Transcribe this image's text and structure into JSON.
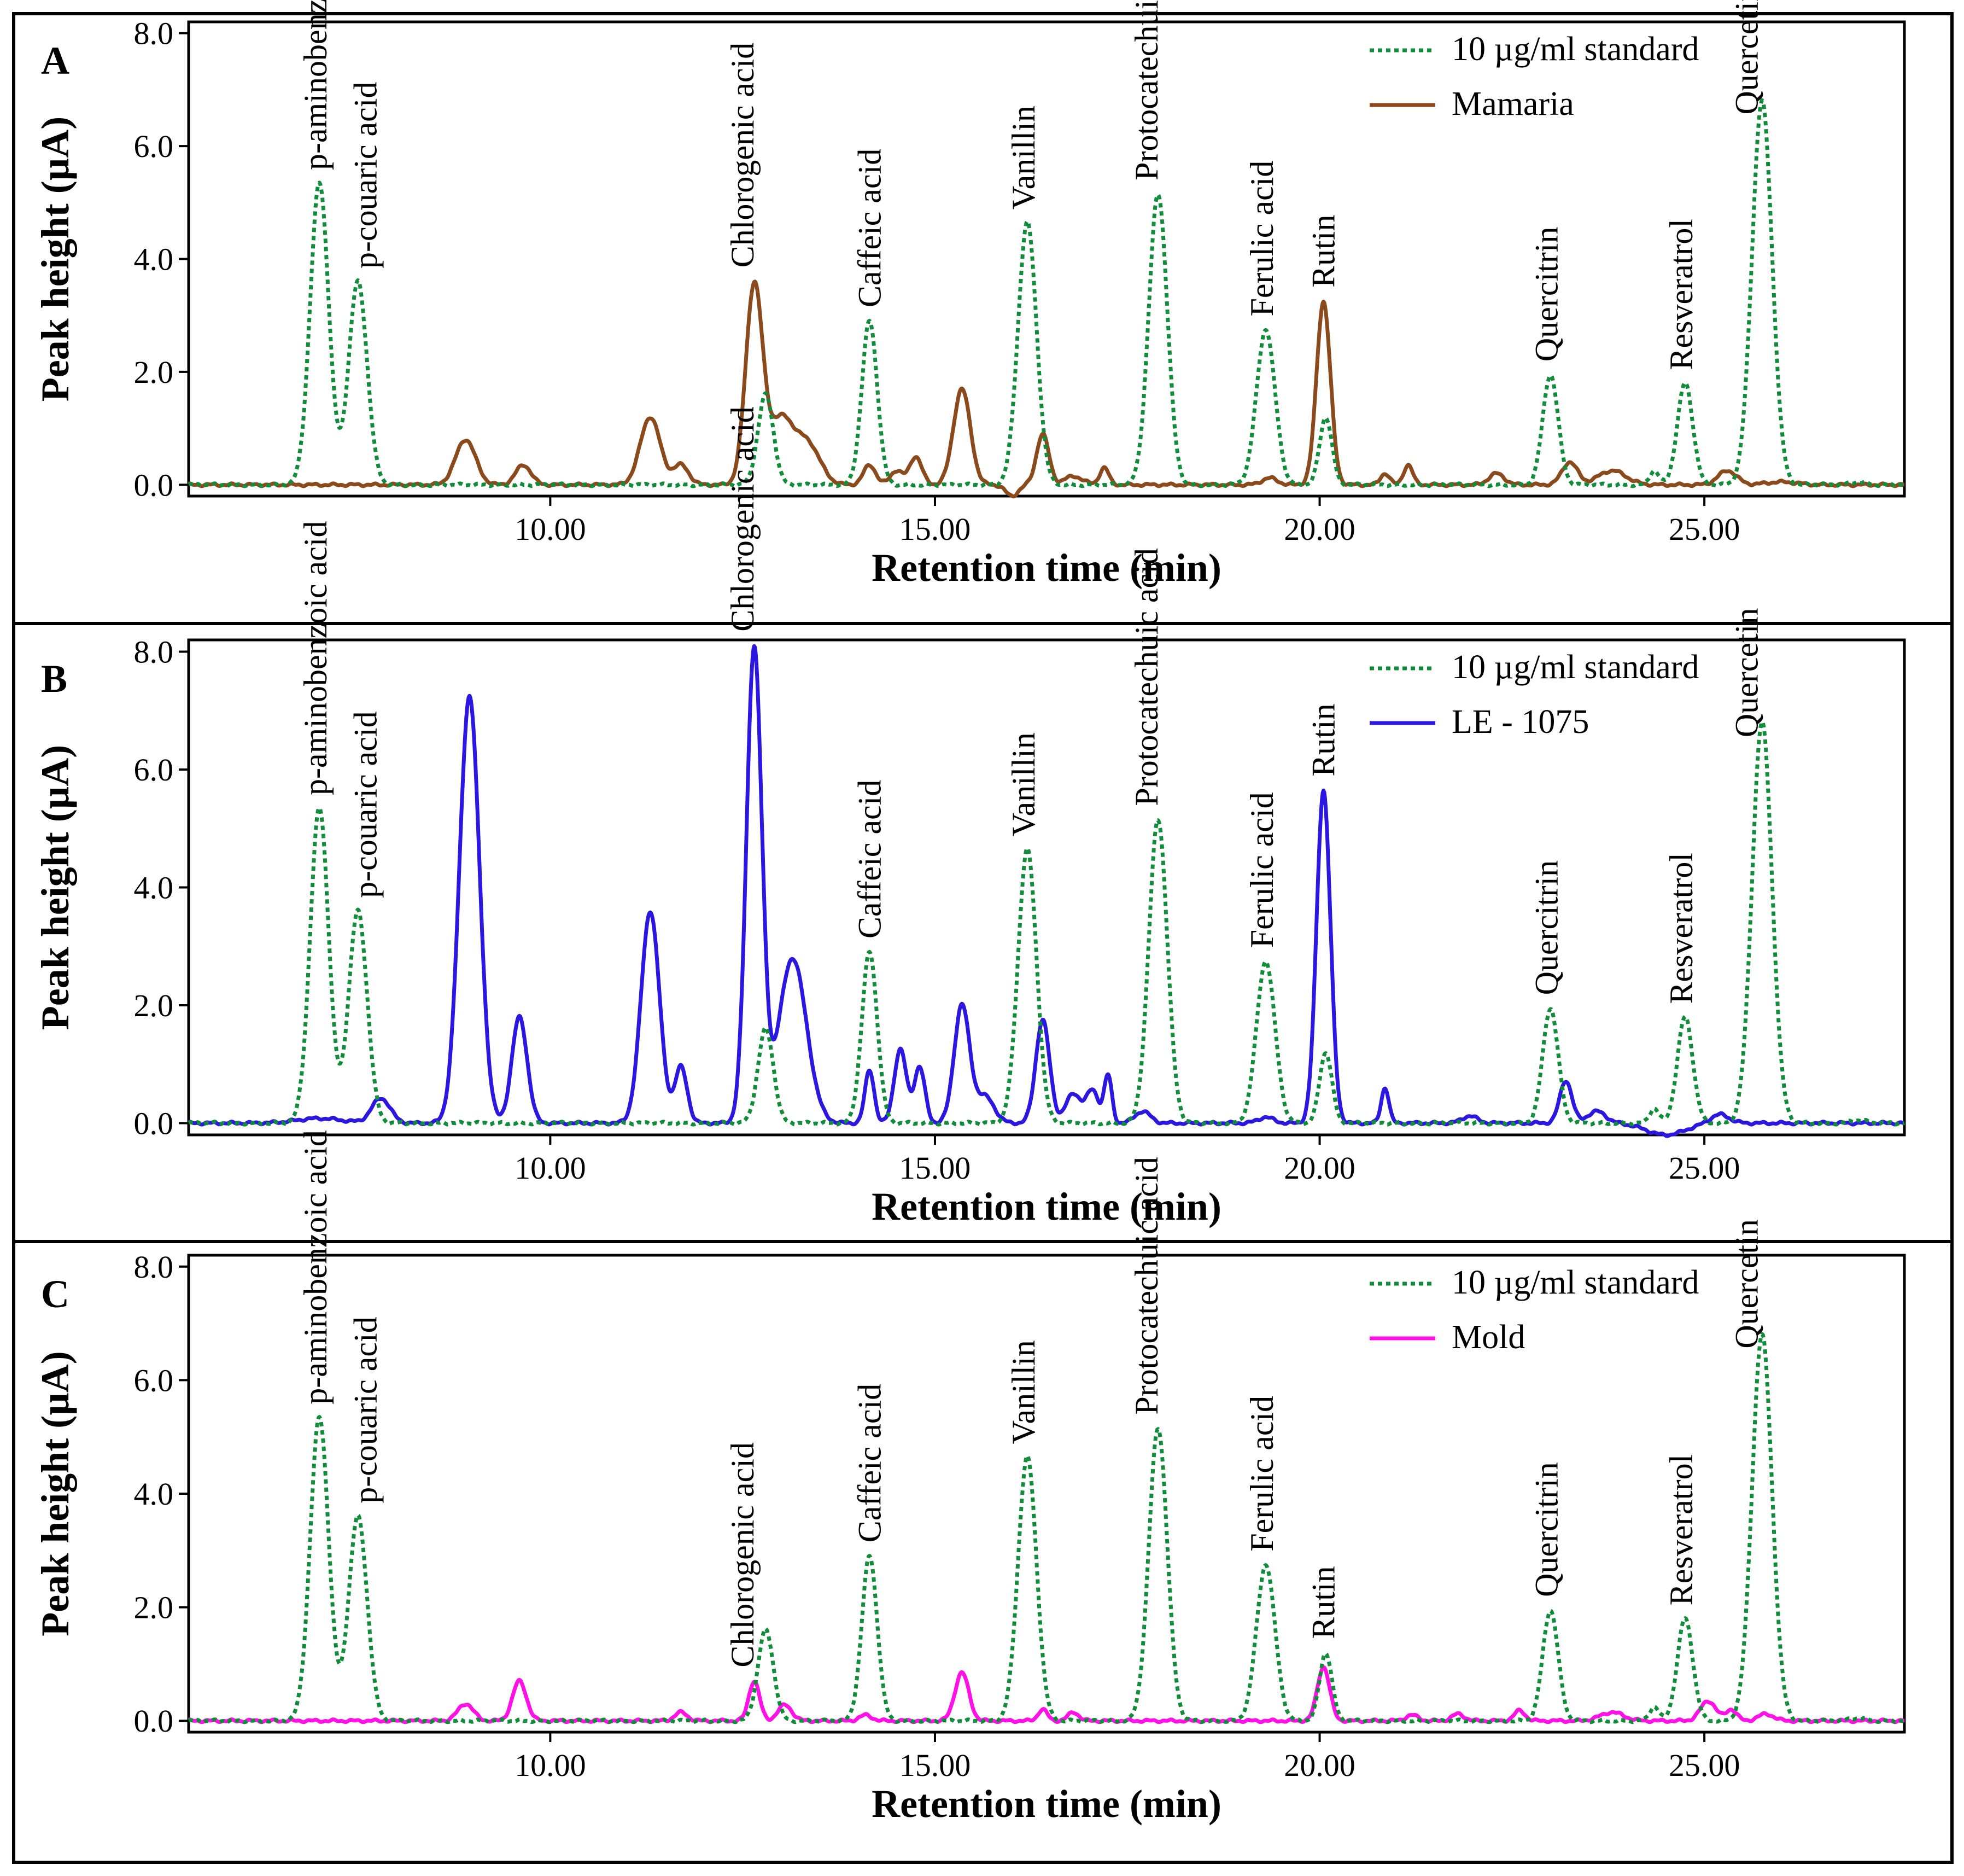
{
  "colors": {
    "standard": "#118c3a",
    "mamaria": "#8b4a1c",
    "le1075": "#2b17e0",
    "mold": "#ff10e6"
  },
  "chart_data": [
    {
      "type": "line",
      "panel_letter": "A",
      "xlabel": "Retention time (min)",
      "ylabel": "Peak height (µA)",
      "xlim": [
        5.3,
        27.6
      ],
      "ylim": [
        -0.2,
        8.2
      ],
      "x_ticks": [
        "10.00",
        "15.00",
        "20.00",
        "25.00"
      ],
      "y_ticks": [
        "0.0",
        "2.0",
        "4.0",
        "6.0",
        "8.0"
      ],
      "legend": [
        "10 µg/ml standard",
        "Mamaria"
      ],
      "series": [
        {
          "name": "10 µg/ml standard",
          "style": "dotted",
          "color_key": "standard",
          "peaks": [
            [
              7.0,
              5.35,
              0.12
            ],
            [
              7.5,
              3.6,
              0.12
            ],
            [
              12.8,
              1.6,
              0.1
            ],
            [
              14.15,
              2.9,
              0.1
            ],
            [
              16.2,
              4.65,
              0.12
            ],
            [
              17.9,
              5.15,
              0.12
            ],
            [
              19.3,
              2.75,
              0.12
            ],
            [
              20.08,
              1.2,
              0.08
            ],
            [
              23.0,
              1.95,
              0.1
            ],
            [
              24.35,
              0.25,
              0.06
            ],
            [
              24.75,
              1.8,
              0.1
            ],
            [
              25.75,
              6.8,
              0.13
            ],
            [
              27.0,
              0.05,
              0.1
            ]
          ]
        },
        {
          "name": "Mamaria",
          "style": "solid",
          "color_key": "mamaria",
          "peaks": [
            [
              8.9,
              0.8,
              0.13
            ],
            [
              9.65,
              0.35,
              0.1
            ],
            [
              11.3,
              1.2,
              0.13
            ],
            [
              11.7,
              0.35,
              0.1
            ],
            [
              12.65,
              3.5,
              0.11
            ],
            [
              13.0,
              1.15,
              0.16
            ],
            [
              13.35,
              0.7,
              0.16
            ],
            [
              14.15,
              0.35,
              0.08
            ],
            [
              14.5,
              0.25,
              0.08
            ],
            [
              14.75,
              0.5,
              0.08
            ],
            [
              15.35,
              1.7,
              0.11
            ],
            [
              16.0,
              -0.2,
              0.08
            ],
            [
              16.4,
              0.9,
              0.08
            ],
            [
              16.8,
              0.15,
              0.12
            ],
            [
              17.2,
              0.3,
              0.06
            ],
            [
              19.35,
              0.12,
              0.1
            ],
            [
              20.05,
              3.25,
              0.09
            ],
            [
              20.85,
              0.2,
              0.06
            ],
            [
              21.15,
              0.35,
              0.06
            ],
            [
              22.3,
              0.2,
              0.1
            ],
            [
              23.25,
              0.4,
              0.1
            ],
            [
              23.8,
              0.25,
              0.18
            ],
            [
              25.3,
              0.25,
              0.12
            ],
            [
              26.0,
              0.05,
              0.2
            ]
          ]
        }
      ]
    },
    {
      "type": "line",
      "panel_letter": "B",
      "xlabel": "Retention time (min)",
      "ylabel": "Peak height (µA)",
      "xlim": [
        5.3,
        27.6
      ],
      "ylim": [
        -0.2,
        8.2
      ],
      "x_ticks": [
        "10.00",
        "15.00",
        "20.00",
        "25.00"
      ],
      "y_ticks": [
        "0.0",
        "2.0",
        "4.0",
        "6.0",
        "8.0"
      ],
      "legend": [
        "10 µg/ml standard",
        "LE - 1075"
      ],
      "series": [
        {
          "name": "10 µg/ml standard",
          "style": "dotted",
          "color_key": "standard",
          "peaks": [
            [
              7.0,
              5.35,
              0.12
            ],
            [
              7.5,
              3.6,
              0.12
            ],
            [
              12.8,
              1.6,
              0.1
            ],
            [
              14.15,
              2.9,
              0.1
            ],
            [
              16.2,
              4.65,
              0.12
            ],
            [
              17.9,
              5.15,
              0.12
            ],
            [
              19.3,
              2.75,
              0.12
            ],
            [
              20.08,
              1.2,
              0.08
            ],
            [
              23.0,
              1.95,
              0.1
            ],
            [
              24.35,
              0.25,
              0.06
            ],
            [
              24.75,
              1.8,
              0.1
            ],
            [
              25.75,
              6.8,
              0.13
            ],
            [
              27.0,
              0.05,
              0.1
            ]
          ]
        },
        {
          "name": "LE - 1075",
          "style": "solid",
          "color_key": "le1075",
          "peaks": [
            [
              7.0,
              0.08,
              0.3
            ],
            [
              7.8,
              0.42,
              0.12
            ],
            [
              8.95,
              7.25,
              0.13
            ],
            [
              9.6,
              1.8,
              0.1
            ],
            [
              11.3,
              3.6,
              0.12
            ],
            [
              11.7,
              0.95,
              0.08
            ],
            [
              12.65,
              8.05,
              0.1
            ],
            [
              13.15,
              2.8,
              0.18
            ],
            [
              14.15,
              0.9,
              0.06
            ],
            [
              14.55,
              1.25,
              0.08
            ],
            [
              14.8,
              0.95,
              0.07
            ],
            [
              15.35,
              2.0,
              0.1
            ],
            [
              15.65,
              0.45,
              0.12
            ],
            [
              16.4,
              1.75,
              0.09
            ],
            [
              16.8,
              0.5,
              0.1
            ],
            [
              17.05,
              0.55,
              0.08
            ],
            [
              17.25,
              0.8,
              0.05
            ],
            [
              17.7,
              0.2,
              0.1
            ],
            [
              19.3,
              0.1,
              0.1
            ],
            [
              20.05,
              5.65,
              0.09
            ],
            [
              20.85,
              0.6,
              0.05
            ],
            [
              21.95,
              0.12,
              0.1
            ],
            [
              23.2,
              0.72,
              0.08
            ],
            [
              23.6,
              0.2,
              0.12
            ],
            [
              24.5,
              -0.2,
              0.25
            ],
            [
              25.2,
              0.15,
              0.12
            ]
          ]
        }
      ]
    },
    {
      "type": "line",
      "panel_letter": "C",
      "xlabel": "Retention time (min)",
      "ylabel": "Peak height (µA)",
      "xlim": [
        5.3,
        27.6
      ],
      "ylim": [
        -0.2,
        8.2
      ],
      "x_ticks": [
        "10.00",
        "15.00",
        "20.00",
        "25.00"
      ],
      "y_ticks": [
        "0.0",
        "2.0",
        "4.0",
        "6.0",
        "8.0"
      ],
      "legend": [
        "10 µg/ml standard",
        "Mold"
      ],
      "series": [
        {
          "name": "10 µg/ml standard",
          "style": "dotted",
          "color_key": "standard",
          "peaks": [
            [
              7.0,
              5.35,
              0.12
            ],
            [
              7.5,
              3.6,
              0.12
            ],
            [
              12.8,
              1.6,
              0.1
            ],
            [
              14.15,
              2.9,
              0.1
            ],
            [
              16.2,
              4.65,
              0.12
            ],
            [
              17.9,
              5.15,
              0.12
            ],
            [
              19.3,
              2.75,
              0.12
            ],
            [
              20.08,
              1.2,
              0.08
            ],
            [
              23.0,
              1.95,
              0.1
            ],
            [
              24.35,
              0.25,
              0.06
            ],
            [
              24.75,
              1.8,
              0.1
            ],
            [
              25.75,
              6.8,
              0.13
            ],
            [
              27.0,
              0.05,
              0.1
            ]
          ]
        },
        {
          "name": "Mold",
          "style": "solid",
          "color_key": "mold",
          "peaks": [
            [
              8.9,
              0.3,
              0.1
            ],
            [
              9.6,
              0.7,
              0.09
            ],
            [
              11.7,
              0.15,
              0.08
            ],
            [
              12.65,
              0.7,
              0.07
            ],
            [
              13.05,
              0.28,
              0.09
            ],
            [
              14.1,
              0.1,
              0.08
            ],
            [
              15.35,
              0.85,
              0.09
            ],
            [
              16.4,
              0.2,
              0.06
            ],
            [
              16.8,
              0.15,
              0.07
            ],
            [
              20.05,
              0.95,
              0.08
            ],
            [
              21.2,
              0.1,
              0.08
            ],
            [
              21.8,
              0.12,
              0.08
            ],
            [
              22.6,
              0.18,
              0.07
            ],
            [
              23.8,
              0.15,
              0.15
            ],
            [
              25.05,
              0.35,
              0.1
            ],
            [
              25.35,
              0.2,
              0.07
            ],
            [
              25.8,
              0.12,
              0.1
            ]
          ]
        }
      ]
    }
  ],
  "peak_labels": [
    {
      "text": "p-aminobenzoic acid",
      "x": 6.95
    },
    {
      "text": "p-couaric acid",
      "x": 7.6
    },
    {
      "text": "Chlorogenic acid",
      "x": 12.5
    },
    {
      "text": "Caffeic acid",
      "x": 14.15
    },
    {
      "text": "Vanillin",
      "x": 16.15
    },
    {
      "text": "Protocatechuic acid",
      "x": 17.75
    },
    {
      "text": "Ferulic acid",
      "x": 19.25
    },
    {
      "text": "Rutin",
      "x": 20.05
    },
    {
      "text": "Quercitrin",
      "x": 22.95
    },
    {
      "text": "Resveratrol",
      "x": 24.7
    },
    {
      "text": "Quercetin",
      "x": 25.55
    }
  ]
}
